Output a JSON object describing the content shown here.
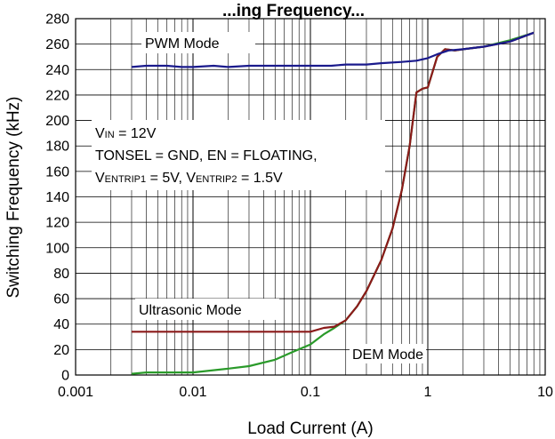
{
  "chart_data": {
    "type": "line",
    "title": "...ing Frequency...",
    "xlabel": "Load Current (A)",
    "ylabel": "Switching Frequency (kHz)",
    "x_scale": "log",
    "xlim": [
      0.001,
      10
    ],
    "ylim": [
      0,
      280
    ],
    "grid": true,
    "x_tick_labels": [
      "0.001",
      "0.01",
      "0.1",
      "1",
      "10"
    ],
    "y_tick_labels": [
      "0",
      "20",
      "40",
      "60",
      "80",
      "100",
      "120",
      "140",
      "160",
      "180",
      "200",
      "220",
      "240",
      "260",
      "280"
    ],
    "series": [
      {
        "name": "PWM Mode",
        "color": "#1a1a8c",
        "x": [
          0.003,
          0.004,
          0.006,
          0.008,
          0.01,
          0.015,
          0.02,
          0.03,
          0.05,
          0.08,
          0.1,
          0.15,
          0.2,
          0.3,
          0.4,
          0.6,
          0.8,
          1.0,
          1.2,
          1.5,
          2,
          3,
          5,
          8
        ],
        "y": [
          242,
          243,
          243,
          242,
          242,
          243,
          242,
          243,
          243,
          243,
          243,
          243,
          244,
          244,
          245,
          246,
          247,
          249,
          252,
          255,
          256,
          258,
          262,
          269
        ]
      },
      {
        "name": "Ultrasonic Mode",
        "color": "#8b1a1a",
        "x": [
          0.003,
          0.01,
          0.05,
          0.08,
          0.1,
          0.13,
          0.16,
          0.2,
          0.25,
          0.3,
          0.4,
          0.5,
          0.6,
          0.7,
          0.8,
          0.9,
          1.0,
          1.2,
          1.4,
          1.7,
          2,
          3,
          5,
          8
        ],
        "y": [
          34,
          34,
          34,
          34,
          34,
          37,
          38,
          43,
          54,
          66,
          90,
          115,
          145,
          180,
          222,
          225,
          226,
          250,
          256,
          255,
          256,
          258,
          262,
          269
        ]
      },
      {
        "name": "DEM Mode",
        "color": "#2a9a2a",
        "x": [
          0.003,
          0.004,
          0.006,
          0.01,
          0.02,
          0.03,
          0.05,
          0.07,
          0.1,
          0.13,
          0.16,
          0.2,
          0.25,
          0.3,
          0.4,
          0.5,
          0.6,
          0.7,
          0.8,
          0.9,
          1.0,
          1.2,
          1.4,
          1.7,
          2,
          3,
          5,
          8
        ],
        "y": [
          1,
          2,
          2,
          2,
          5,
          7,
          12,
          18,
          24,
          32,
          37,
          43,
          54,
          66,
          90,
          115,
          145,
          180,
          222,
          225,
          226,
          250,
          256,
          255,
          256,
          258,
          263,
          269
        ]
      }
    ],
    "annotations": {
      "pwm": "PWM Mode",
      "ultrasonic": "Ultrasonic Mode",
      "dem": "DEM Mode",
      "vin_main": "V",
      "vin_sub": "IN",
      "vin_rest": " = 12V",
      "tonsel": "TONSEL = GND, EN = FLOATING,",
      "ventrip1_main": "V",
      "ventrip1_sub": "ENTRIP1",
      "ventrip1_rest": " = 5V, ",
      "ventrip2_main": "V",
      "ventrip2_sub": "ENTRIP2",
      "ventrip2_rest": " = 1.5V"
    }
  }
}
